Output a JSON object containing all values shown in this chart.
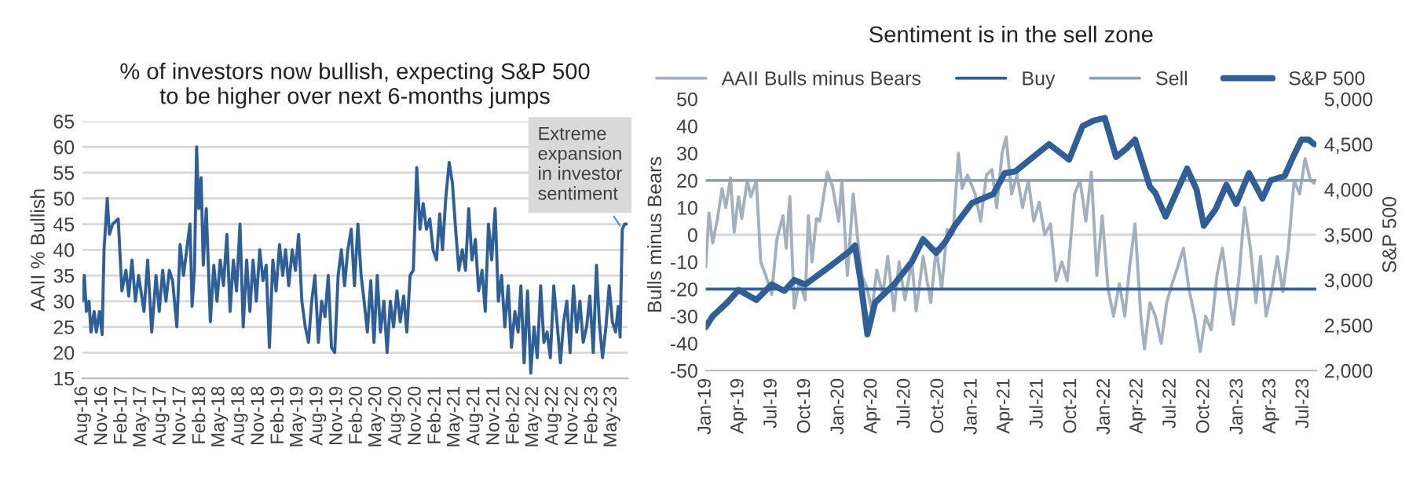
{
  "chart_data": [
    {
      "type": "line",
      "title": "% of investors now bullish, expecting S&P 500\nto be higher over next 6-months jumps",
      "ylabel": "AAII % Bullish",
      "series": [
        {
          "color": "#2f5f98",
          "x": [
            "2016-08-01",
            "2016-08-10",
            "2016-08-20",
            "2016-09-01",
            "2016-09-10",
            "2016-09-25",
            "2016-10-05",
            "2016-10-20",
            "2016-11-01",
            "2016-11-10",
            "2016-11-25",
            "2016-12-05",
            "2016-12-20",
            "2017-01-15",
            "2017-02-01",
            "2017-02-20",
            "2017-03-05",
            "2017-03-20",
            "2017-04-05",
            "2017-04-20",
            "2017-05-15",
            "2017-06-01",
            "2017-06-20",
            "2017-07-10",
            "2017-07-25",
            "2017-08-10",
            "2017-08-25",
            "2017-09-10",
            "2017-09-25",
            "2017-10-15",
            "2017-10-30",
            "2017-11-15",
            "2017-11-30",
            "2017-12-15",
            "2017-12-25",
            "2018-01-05",
            "2018-01-15",
            "2018-01-25",
            "2018-02-05",
            "2018-02-15",
            "2018-03-01",
            "2018-03-20",
            "2018-04-05",
            "2018-04-20",
            "2018-05-05",
            "2018-05-20",
            "2018-06-05",
            "2018-06-20",
            "2018-07-05",
            "2018-07-20",
            "2018-08-05",
            "2018-08-20",
            "2018-09-05",
            "2018-09-20",
            "2018-10-05",
            "2018-10-20",
            "2018-11-05",
            "2018-11-20",
            "2018-12-05",
            "2018-12-20",
            "2019-01-05",
            "2019-01-20",
            "2019-02-05",
            "2019-02-20",
            "2019-03-05",
            "2019-03-20",
            "2019-04-05",
            "2019-04-20",
            "2019-05-05",
            "2019-05-20",
            "2019-06-05",
            "2019-06-20",
            "2019-07-05",
            "2019-07-20",
            "2019-08-05",
            "2019-08-20",
            "2019-09-05",
            "2019-09-20",
            "2019-10-05",
            "2019-10-20",
            "2019-11-05",
            "2019-11-20",
            "2019-12-05",
            "2019-12-20",
            "2020-01-05",
            "2020-01-20",
            "2020-02-05",
            "2020-02-20",
            "2020-03-05",
            "2020-03-20",
            "2020-04-05",
            "2020-04-20",
            "2020-05-05",
            "2020-05-20",
            "2020-06-05",
            "2020-06-20",
            "2020-07-05",
            "2020-07-20",
            "2020-08-05",
            "2020-08-20",
            "2020-09-05",
            "2020-09-20",
            "2020-10-05",
            "2020-10-20",
            "2020-11-05",
            "2020-11-20",
            "2020-12-05",
            "2020-12-20",
            "2021-01-05",
            "2021-01-20",
            "2021-02-05",
            "2021-02-20",
            "2021-03-05",
            "2021-03-20",
            "2021-04-05",
            "2021-04-20",
            "2021-05-05",
            "2021-05-20",
            "2021-06-05",
            "2021-06-20",
            "2021-07-05",
            "2021-07-20",
            "2021-08-05",
            "2021-08-20",
            "2021-09-05",
            "2021-09-20",
            "2021-10-05",
            "2021-10-20",
            "2021-11-05",
            "2021-11-20",
            "2021-12-05",
            "2021-12-20",
            "2022-01-05",
            "2022-01-20",
            "2022-02-05",
            "2022-02-20",
            "2022-03-05",
            "2022-03-20",
            "2022-04-05",
            "2022-04-20",
            "2022-05-05",
            "2022-05-20",
            "2022-06-05",
            "2022-06-20",
            "2022-07-05",
            "2022-07-20",
            "2022-08-05",
            "2022-08-20",
            "2022-09-05",
            "2022-09-20",
            "2022-10-05",
            "2022-10-20",
            "2022-11-05",
            "2022-11-20",
            "2022-12-05",
            "2022-12-20",
            "2023-01-05",
            "2023-01-20",
            "2023-02-05",
            "2023-02-20",
            "2023-03-05",
            "2023-03-20",
            "2023-04-05",
            "2023-04-20",
            "2023-05-05",
            "2023-05-20",
            "2023-06-01",
            "2023-06-10",
            "2023-06-20",
            "2023-07-01",
            "2023-07-10"
          ],
          "values": [
            30,
            35,
            28,
            30,
            24,
            28,
            24,
            28,
            23.5,
            40,
            50,
            43,
            45,
            46,
            32,
            36,
            31,
            38,
            30,
            35,
            28,
            38,
            24,
            35,
            28,
            36,
            30,
            36,
            34,
            25,
            41,
            35,
            40,
            45,
            29,
            36,
            60,
            48,
            54,
            37,
            48,
            26,
            37,
            30,
            38,
            33,
            43,
            28,
            38,
            32,
            45,
            25,
            38,
            28,
            38,
            30,
            40,
            34,
            37,
            21,
            38,
            32,
            41,
            35,
            40,
            33,
            40,
            36,
            43,
            30,
            25,
            22,
            30,
            35,
            22,
            30,
            27,
            35,
            21,
            20,
            35,
            40,
            33,
            40,
            44,
            33,
            45,
            35,
            30,
            24,
            34,
            22,
            35,
            24,
            30,
            20,
            30,
            25,
            32,
            26,
            31,
            24,
            35,
            36,
            56,
            44,
            49,
            44,
            46,
            40,
            38,
            47,
            40,
            50,
            57,
            53,
            44,
            36,
            40,
            36,
            48,
            38,
            42,
            32,
            36,
            28,
            45,
            38,
            48,
            30,
            35,
            25,
            33,
            21,
            28,
            24,
            33,
            18,
            32,
            16,
            25,
            19,
            33,
            22,
            24,
            19,
            33,
            26,
            18,
            26,
            30,
            20,
            33,
            24,
            30,
            22,
            25,
            31,
            20,
            37,
            26,
            19,
            25,
            33,
            26,
            24,
            29,
            23,
            44,
            45,
            45
          ]
        }
      ],
      "xlim": [
        "2016-08-01",
        "2023-07-15"
      ],
      "xticks": [
        {
          "value": "2016-08-01",
          "label": "Aug-16"
        },
        {
          "value": "2016-11-01",
          "label": "Nov-16"
        },
        {
          "value": "2017-02-01",
          "label": "Feb-17"
        },
        {
          "value": "2017-05-01",
          "label": "May-17"
        },
        {
          "value": "2017-08-01",
          "label": "Aug-17"
        },
        {
          "value": "2017-11-01",
          "label": "Nov-17"
        },
        {
          "value": "2018-02-01",
          "label": "Feb-18"
        },
        {
          "value": "2018-05-01",
          "label": "May-18"
        },
        {
          "value": "2018-08-01",
          "label": "Aug-18"
        },
        {
          "value": "2018-11-01",
          "label": "Nov-18"
        },
        {
          "value": "2019-02-01",
          "label": "Feb-19"
        },
        {
          "value": "2019-05-01",
          "label": "May-19"
        },
        {
          "value": "2019-08-01",
          "label": "Aug-19"
        },
        {
          "value": "2019-11-01",
          "label": "Nov-19"
        },
        {
          "value": "2020-02-01",
          "label": "Feb-20"
        },
        {
          "value": "2020-05-01",
          "label": "May-20"
        },
        {
          "value": "2020-08-01",
          "label": "Aug-20"
        },
        {
          "value": "2020-11-01",
          "label": "Nov-20"
        },
        {
          "value": "2021-02-01",
          "label": "Feb-21"
        },
        {
          "value": "2021-05-01",
          "label": "May-21"
        },
        {
          "value": "2021-08-01",
          "label": "Aug-21"
        },
        {
          "value": "2021-11-01",
          "label": "Nov-21"
        },
        {
          "value": "2022-02-01",
          "label": "Feb-22"
        },
        {
          "value": "2022-05-01",
          "label": "May-22"
        },
        {
          "value": "2022-08-01",
          "label": "Aug-22"
        },
        {
          "value": "2022-11-01",
          "label": "Nov-22"
        },
        {
          "value": "2023-02-01",
          "label": "Feb-23"
        },
        {
          "value": "2023-05-01",
          "label": "May-23"
        }
      ],
      "ylim": [
        15,
        65
      ],
      "yticks": [
        15,
        20,
        25,
        30,
        35,
        40,
        45,
        50,
        55,
        60,
        65
      ],
      "grid": "y",
      "legend": false,
      "annotations": [
        {
          "text": "Extreme\nexpansion\nin investor\nsentiment",
          "x": "2023-06-20",
          "y": 44
        }
      ]
    },
    {
      "type": "line",
      "title": "Sentiment is in the sell zone",
      "ylabel": "Bulls minus Bears",
      "y2label": "S&P 500",
      "series": [
        {
          "name": "AAII Bulls minus Bears",
          "color": "#a3b1bf",
          "x": [
            "2019-01-01",
            "2019-01-10",
            "2019-01-20",
            "2019-02-01",
            "2019-02-15",
            "2019-02-25",
            "2019-03-10",
            "2019-03-20",
            "2019-04-01",
            "2019-04-10",
            "2019-04-25",
            "2019-05-05",
            "2019-05-20",
            "2019-06-01",
            "2019-06-15",
            "2019-07-01",
            "2019-07-15",
            "2019-08-01",
            "2019-08-10",
            "2019-08-20",
            "2019-09-01",
            "2019-09-15",
            "2019-10-01",
            "2019-10-10",
            "2019-10-20",
            "2019-11-01",
            "2019-11-10",
            "2019-12-01",
            "2019-12-15",
            "2020-01-01",
            "2020-01-10",
            "2020-01-25",
            "2020-02-10",
            "2020-02-25",
            "2020-03-05",
            "2020-03-20",
            "2020-04-01",
            "2020-04-15",
            "2020-05-01",
            "2020-05-15",
            "2020-06-01",
            "2020-06-15",
            "2020-07-01",
            "2020-07-20",
            "2020-08-01",
            "2020-08-20",
            "2020-09-10",
            "2020-09-25",
            "2020-10-10",
            "2020-10-25",
            "2020-11-10",
            "2020-11-25",
            "2020-12-05",
            "2020-12-20",
            "2021-01-10",
            "2021-01-25",
            "2021-02-10",
            "2021-02-25",
            "2021-03-10",
            "2021-03-25",
            "2021-04-05",
            "2021-04-20",
            "2021-05-05",
            "2021-05-20",
            "2021-06-05",
            "2021-06-20",
            "2021-07-05",
            "2021-07-20",
            "2021-08-05",
            "2021-08-20",
            "2021-09-05",
            "2021-09-20",
            "2021-10-10",
            "2021-10-25",
            "2021-11-10",
            "2021-11-25",
            "2021-12-10",
            "2021-12-25",
            "2022-01-10",
            "2022-01-25",
            "2022-02-10",
            "2022-02-25",
            "2022-03-10",
            "2022-03-25",
            "2022-04-10",
            "2022-04-20",
            "2022-05-05",
            "2022-05-20",
            "2022-06-05",
            "2022-06-20",
            "2022-07-05",
            "2022-07-20",
            "2022-08-05",
            "2022-08-20",
            "2022-09-05",
            "2022-09-20",
            "2022-10-05",
            "2022-10-20",
            "2022-11-05",
            "2022-11-20",
            "2022-12-05",
            "2022-12-20",
            "2023-01-05",
            "2023-01-20",
            "2023-02-05",
            "2023-02-20",
            "2023-03-05",
            "2023-03-20",
            "2023-04-05",
            "2023-04-20",
            "2023-05-05",
            "2023-05-20",
            "2023-06-05",
            "2023-06-20",
            "2023-07-05",
            "2023-07-20",
            "2023-07-30"
          ],
          "values": [
            -12,
            8,
            -3,
            5,
            17,
            10,
            21,
            1,
            14,
            6,
            20,
            14,
            20,
            -10,
            -15,
            -22,
            -2,
            7,
            -5,
            14,
            -27,
            -17,
            -24,
            7,
            -10,
            6,
            5,
            23,
            18,
            5,
            20,
            -15,
            15,
            -5,
            -15,
            -20,
            -28,
            -13,
            -22,
            -8,
            -28,
            -10,
            -24,
            -10,
            -28,
            -8,
            -25,
            -5,
            -20,
            2,
            0,
            30,
            17,
            22,
            15,
            5,
            22,
            24,
            10,
            30,
            36,
            15,
            22,
            10,
            20,
            5,
            12,
            0,
            4,
            -17,
            -10,
            -17,
            15,
            20,
            5,
            23,
            -15,
            7,
            -20,
            -30,
            -18,
            -30,
            -12,
            4,
            -30,
            -42,
            -25,
            -30,
            -40,
            -25,
            -18,
            -12,
            -5,
            -20,
            -30,
            -43,
            -30,
            -35,
            -15,
            -5,
            -20,
            -33,
            -15,
            10,
            -5,
            -25,
            -8,
            -30,
            -20,
            -8,
            -21,
            -5,
            20,
            15,
            28,
            20,
            19
          ]
        },
        {
          "name": "Buy",
          "color": "#2f5f98",
          "x": [
            "2019-01-01",
            "2023-08-05"
          ],
          "values": [
            -20,
            -20
          ]
        },
        {
          "name": "Sell",
          "color": "#8fa3b8",
          "x": [
            "2019-01-01",
            "2023-08-05"
          ],
          "values": [
            20,
            20
          ]
        },
        {
          "name": "S&P 500",
          "color": "#2f5f98",
          "axis": "y2",
          "x": [
            "2019-01-01",
            "2019-01-20",
            "2019-03-01",
            "2019-04-01",
            "2019-05-20",
            "2019-07-01",
            "2019-08-05",
            "2019-09-01",
            "2019-10-01",
            "2019-12-01",
            "2020-02-01",
            "2020-02-15",
            "2020-03-01",
            "2020-03-20",
            "2020-04-10",
            "2020-06-01",
            "2020-07-20",
            "2020-08-20",
            "2020-09-25",
            "2020-10-20",
            "2020-11-15",
            "2021-01-01",
            "2021-03-01",
            "2021-04-01",
            "2021-05-01",
            "2021-07-01",
            "2021-08-01",
            "2021-09-25",
            "2021-11-01",
            "2021-12-01",
            "2022-01-01",
            "2022-02-01",
            "2022-03-01",
            "2022-03-25",
            "2022-05-05",
            "2022-05-20",
            "2022-06-17",
            "2022-08-15",
            "2022-09-10",
            "2022-09-30",
            "2022-11-01",
            "2022-12-01",
            "2022-12-28",
            "2023-02-01",
            "2023-03-10",
            "2023-04-01",
            "2023-05-10",
            "2023-06-01",
            "2023-06-25",
            "2023-07-15",
            "2023-07-30"
          ],
          "values": [
            2480,
            2600,
            2750,
            2890,
            2780,
            2950,
            2880,
            3000,
            2950,
            3130,
            3320,
            3380,
            3000,
            2400,
            2750,
            2950,
            3200,
            3450,
            3300,
            3420,
            3600,
            3850,
            3950,
            4180,
            4200,
            4400,
            4500,
            4330,
            4700,
            4760,
            4790,
            4360,
            4450,
            4550,
            4030,
            3960,
            3700,
            4230,
            4000,
            3600,
            3780,
            4050,
            3840,
            4180,
            3900,
            4100,
            4150,
            4350,
            4550,
            4550,
            4500
          ]
        }
      ],
      "xlim": [
        "2019-01-01",
        "2023-08-05"
      ],
      "xticks": [
        {
          "value": "2019-01-01",
          "label": "Jan-19"
        },
        {
          "value": "2019-04-01",
          "label": "Apr-19"
        },
        {
          "value": "2019-07-01",
          "label": "Jul-19"
        },
        {
          "value": "2019-10-01",
          "label": "Oct-19"
        },
        {
          "value": "2020-01-01",
          "label": "Jan-20"
        },
        {
          "value": "2020-04-01",
          "label": "Apr-20"
        },
        {
          "value": "2020-07-01",
          "label": "Jul-20"
        },
        {
          "value": "2020-10-01",
          "label": "Oct-20"
        },
        {
          "value": "2021-01-01",
          "label": "Jan-21"
        },
        {
          "value": "2021-04-01",
          "label": "Apr-21"
        },
        {
          "value": "2021-07-01",
          "label": "Jul-21"
        },
        {
          "value": "2021-10-01",
          "label": "Oct-21"
        },
        {
          "value": "2022-01-01",
          "label": "Jan-22"
        },
        {
          "value": "2022-04-01",
          "label": "Apr-22"
        },
        {
          "value": "2022-07-01",
          "label": "Jul-22"
        },
        {
          "value": "2022-10-01",
          "label": "Oct-22"
        },
        {
          "value": "2023-01-01",
          "label": "Jan-23"
        },
        {
          "value": "2023-04-01",
          "label": "Apr-23"
        },
        {
          "value": "2023-07-01",
          "label": "Jul-23"
        }
      ],
      "ylim": [
        -50,
        50
      ],
      "yticks": [
        -50,
        -40,
        -30,
        -20,
        -10,
        0,
        10,
        20,
        30,
        40,
        50
      ],
      "y2lim": [
        2000,
        5000
      ],
      "y2ticks": [
        {
          "value": 2000,
          "label": "2,000"
        },
        {
          "value": 2500,
          "label": "2,500"
        },
        {
          "value": 3000,
          "label": "3,000"
        },
        {
          "value": 3500,
          "label": "3,500"
        },
        {
          "value": 4000,
          "label": "4,000"
        },
        {
          "value": 4500,
          "label": "4,500"
        },
        {
          "value": 5000,
          "label": "5,000"
        }
      ],
      "ref_lines": [
        {
          "axis": "y",
          "value": 0,
          "color": "#d9d9d9"
        }
      ],
      "grid": false,
      "legend": "top"
    }
  ]
}
